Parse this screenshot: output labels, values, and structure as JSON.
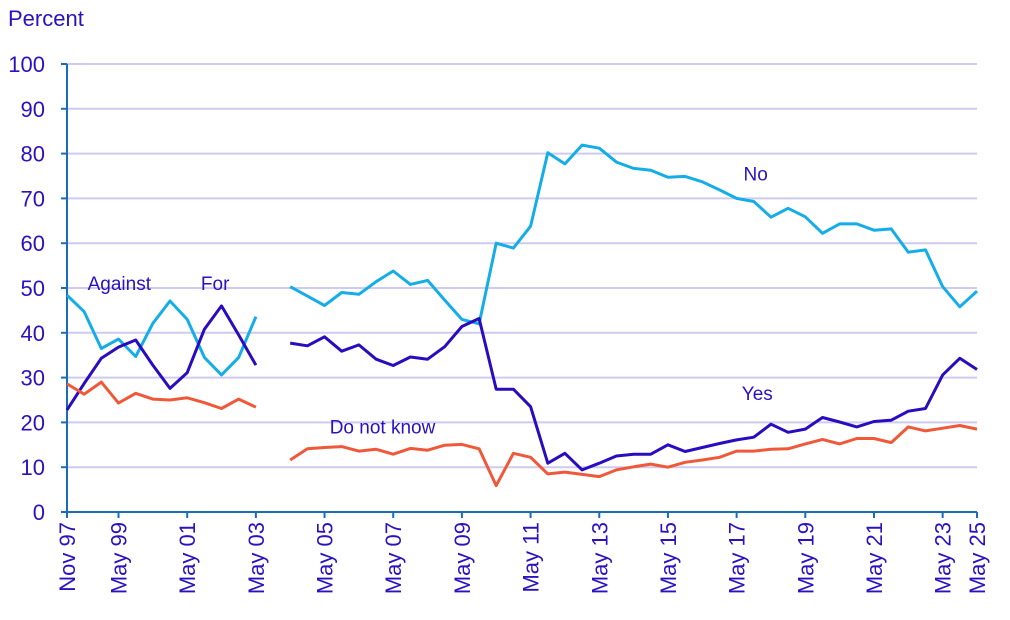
{
  "chart_data": {
    "type": "line",
    "ylabel": "Percent",
    "xlabel": "",
    "ylim": [
      0,
      100
    ],
    "yticks": [
      0,
      10,
      20,
      30,
      40,
      50,
      60,
      70,
      80,
      90,
      100
    ],
    "grid": true,
    "x_axis": "categorical survey index (54 positions, position 12 has no data)",
    "xticks": [
      {
        "index": 0,
        "label": "Nov 97"
      },
      {
        "index": 3,
        "label": "May 99"
      },
      {
        "index": 7,
        "label": "May 01"
      },
      {
        "index": 11,
        "label": "May 03"
      },
      {
        "index": 15,
        "label": "May 05"
      },
      {
        "index": 19,
        "label": "May 07"
      },
      {
        "index": 23,
        "label": "May 09"
      },
      {
        "index": 27,
        "label": "May 11"
      },
      {
        "index": 31,
        "label": "May 13"
      },
      {
        "index": 35,
        "label": "May 15"
      },
      {
        "index": 39,
        "label": "May 17"
      },
      {
        "index": 43,
        "label": "May 19"
      },
      {
        "index": 47,
        "label": "May 21"
      },
      {
        "index": 51,
        "label": "May 23"
      },
      {
        "index": 53,
        "label": "May 25"
      }
    ],
    "series": [
      {
        "key": "light",
        "color": "#14ade8",
        "values": [
          48.4,
          44.7,
          36.5,
          38.6,
          34.7,
          42.1,
          47.1,
          43.0,
          34.5,
          30.6,
          34.5,
          43.6,
          null,
          50.3,
          48.2,
          46.1,
          49.0,
          48.6,
          51.4,
          53.8,
          50.8,
          51.7,
          47.3,
          43.0,
          42.0,
          60.0,
          58.9,
          63.8,
          80.2,
          77.7,
          81.9,
          81.2,
          78.1,
          76.7,
          76.3,
          74.7,
          74.9,
          73.7,
          71.9,
          70.0,
          69.3,
          65.8,
          67.8,
          65.9,
          62.2,
          64.3,
          64.3,
          62.9,
          63.2,
          58.0,
          58.5,
          50.3,
          45.8,
          49.3
        ]
      },
      {
        "key": "dark",
        "color": "#2a0cc0",
        "values": [
          22.8,
          28.7,
          34.3,
          36.8,
          38.4,
          32.8,
          27.6,
          31.1,
          40.8,
          46.0,
          39.5,
          32.8,
          null,
          37.7,
          37.1,
          39.1,
          35.9,
          37.3,
          34.1,
          32.7,
          34.6,
          34.1,
          36.9,
          41.4,
          43.2,
          27.4,
          27.4,
          23.5,
          10.9,
          13.1,
          9.4,
          10.9,
          12.5,
          12.9,
          12.9,
          15.0,
          13.5,
          14.4,
          15.3,
          16.1,
          16.7,
          19.6,
          17.8,
          18.5,
          21.1,
          20.1,
          19.0,
          20.2,
          20.5,
          22.5,
          23.1,
          30.6,
          34.3,
          31.8
        ]
      },
      {
        "key": "red",
        "color": "#f0583a",
        "values": [
          28.6,
          26.3,
          29.0,
          24.3,
          26.5,
          25.2,
          25.0,
          25.5,
          24.4,
          23.1,
          25.2,
          23.4,
          null,
          11.6,
          14.1,
          14.4,
          14.6,
          13.6,
          14.0,
          12.9,
          14.2,
          13.8,
          14.9,
          15.1,
          14.1,
          5.9,
          13.1,
          12.2,
          8.5,
          8.9,
          8.4,
          7.9,
          9.4,
          10.1,
          10.7,
          10.0,
          11.1,
          11.6,
          12.2,
          13.6,
          13.6,
          14.0,
          14.1,
          15.2,
          16.2,
          15.2,
          16.4,
          16.4,
          15.5,
          19.0,
          18.1,
          18.7,
          19.3,
          18.5
        ]
      }
    ],
    "annotations": [
      {
        "text": "Against",
        "series": "light",
        "index": 1.2,
        "value": 49.5
      },
      {
        "text": "For",
        "series": "dark",
        "index": 7.8,
        "value": 49.5
      },
      {
        "text": "No",
        "series": "light",
        "index": 39.4,
        "value": 74
      },
      {
        "text": "Yes",
        "series": "dark",
        "index": 39.3,
        "value": 25
      },
      {
        "text": "Do not know",
        "series": "red",
        "index": 15.3,
        "value": 17.5
      }
    ],
    "colors": {
      "text": "#2a12c0",
      "axis": "#1a6db8",
      "grid": "#cfcaef"
    }
  }
}
